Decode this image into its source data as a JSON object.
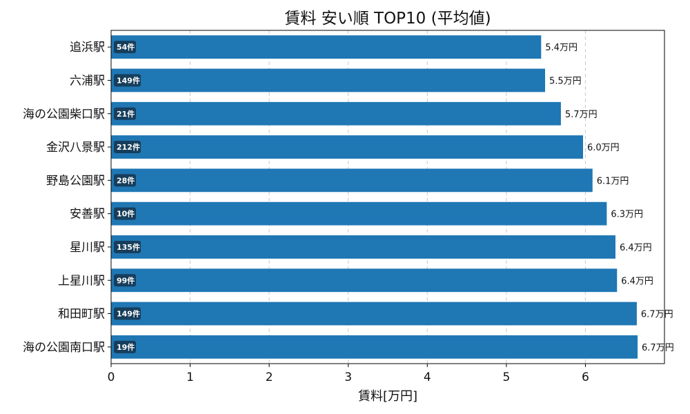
{
  "chart_data": {
    "type": "bar",
    "orientation": "horizontal",
    "title": "賃料 安い順 TOP10 (平均値)",
    "xlabel": "賃料[万円]",
    "ylabel": "",
    "xlim": [
      0,
      7
    ],
    "x_ticks": [
      "0",
      "1",
      "2",
      "3",
      "4",
      "5",
      "6"
    ],
    "grid": {
      "x": true,
      "y": false,
      "style": "dashed"
    },
    "bar_color": "#1f77b4",
    "badge_color": "#163e5c",
    "categories": [
      "追浜駅",
      "六浦駅",
      "海の公園柴口駅",
      "金沢八景駅",
      "野島公園駅",
      "安善駅",
      "星川駅",
      "上星川駅",
      "和田町駅",
      "海の公園南口駅"
    ],
    "values": [
      5.44,
      5.49,
      5.69,
      5.97,
      6.09,
      6.27,
      6.38,
      6.4,
      6.65,
      6.66
    ],
    "value_labels": [
      "5.4万円",
      "5.5万円",
      "5.7万円",
      "6.0万円",
      "6.1万円",
      "6.3万円",
      "6.4万円",
      "6.4万円",
      "6.7万円",
      "6.7万円"
    ],
    "count_labels": [
      "54件",
      "149件",
      "21件",
      "212件",
      "28件",
      "10件",
      "135件",
      "99件",
      "149件",
      "19件"
    ]
  }
}
